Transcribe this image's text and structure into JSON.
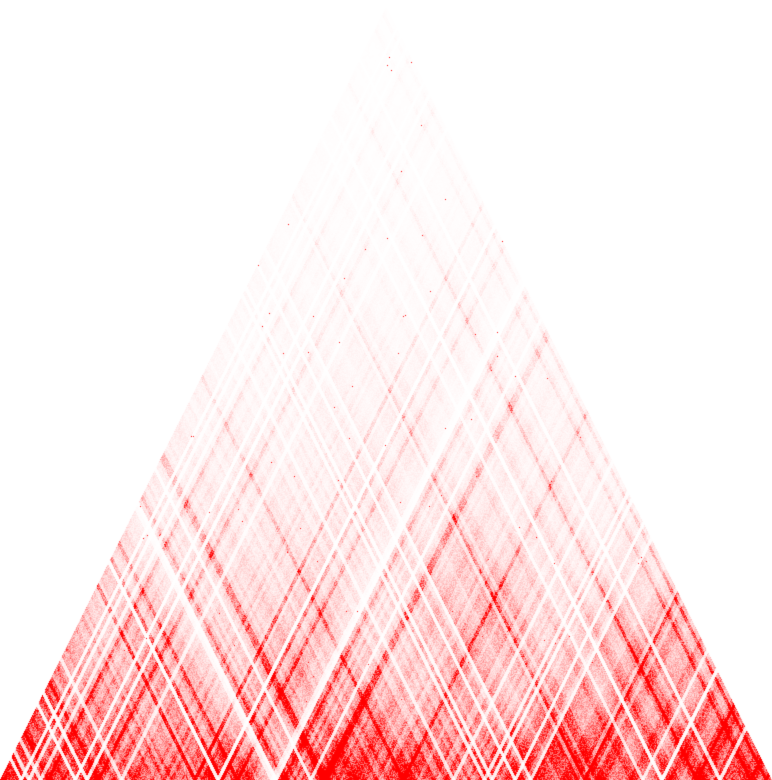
{
  "chart_data": {
    "type": "heatmap",
    "layout": "triangle",
    "color_low": "#ffffff",
    "color_high": "#ff0000",
    "matrix_diagonals": [
      [
        0.95,
        0.9,
        0.85,
        0.85,
        0.85,
        0.9,
        0.8,
        0.85,
        0.9,
        0.95,
        0.9,
        0.95,
        0.95,
        0.9,
        0.95,
        0.95,
        0.9,
        0.95,
        0.95,
        0.9
      ],
      [
        0.75,
        0.6,
        0.5,
        0.45,
        0.45,
        0.4,
        0.35,
        0.5,
        0.6,
        0.5,
        0.5,
        0.55,
        0.55,
        0.6,
        0.7,
        0.7,
        0.75,
        0.8,
        0.8
      ],
      [
        0.55,
        0.5,
        0.45,
        0.4,
        0.35,
        0.35,
        0.4,
        0.45,
        0.4,
        0.35,
        0.4,
        0.35,
        0.35,
        0.4,
        0.45,
        0.5,
        0.55,
        0.5
      ],
      [
        0.4,
        0.35,
        0.35,
        0.3,
        0.3,
        0.3,
        0.35,
        0.3,
        0.25,
        0.3,
        0.35,
        0.35,
        0.3,
        0.35,
        0.45,
        0.5,
        0.45
      ],
      [
        0.3,
        0.3,
        0.25,
        0.25,
        0.25,
        0.25,
        0.25,
        0.25,
        0.25,
        0.3,
        0.35,
        0.35,
        0.3,
        0.3,
        0.35,
        0.35
      ],
      [
        0.22,
        0.22,
        0.2,
        0.2,
        0.22,
        0.2,
        0.2,
        0.2,
        0.22,
        0.3,
        0.3,
        0.25,
        0.22,
        0.2,
        0.2
      ],
      [
        0.18,
        0.18,
        0.16,
        0.16,
        0.18,
        0.18,
        0.16,
        0.18,
        0.2,
        0.22,
        0.2,
        0.18,
        0.16,
        0.15
      ],
      [
        0.15,
        0.14,
        0.14,
        0.14,
        0.16,
        0.15,
        0.14,
        0.15,
        0.16,
        0.17,
        0.15,
        0.14,
        0.12
      ],
      [
        0.12,
        0.12,
        0.12,
        0.12,
        0.13,
        0.12,
        0.12,
        0.13,
        0.14,
        0.13,
        0.12,
        0.1
      ],
      [
        0.1,
        0.1,
        0.1,
        0.11,
        0.11,
        0.1,
        0.11,
        0.11,
        0.12,
        0.11,
        0.1
      ],
      [
        0.08,
        0.08,
        0.09,
        0.09,
        0.09,
        0.09,
        0.09,
        0.1,
        0.09,
        0.08
      ],
      [
        0.07,
        0.07,
        0.07,
        0.08,
        0.08,
        0.08,
        0.08,
        0.08,
        0.07
      ],
      [
        0.06,
        0.06,
        0.06,
        0.07,
        0.07,
        0.07,
        0.07,
        0.06
      ],
      [
        0.05,
        0.05,
        0.05,
        0.06,
        0.06,
        0.06,
        0.05
      ],
      [
        0.04,
        0.04,
        0.05,
        0.05,
        0.05,
        0.04
      ],
      [
        0.04,
        0.04,
        0.04,
        0.04,
        0.04
      ],
      [
        0.03,
        0.03,
        0.03,
        0.03
      ],
      [
        0.03,
        0.03,
        0.03
      ],
      [
        0.02,
        0.02
      ],
      [
        0.02
      ]
    ]
  }
}
